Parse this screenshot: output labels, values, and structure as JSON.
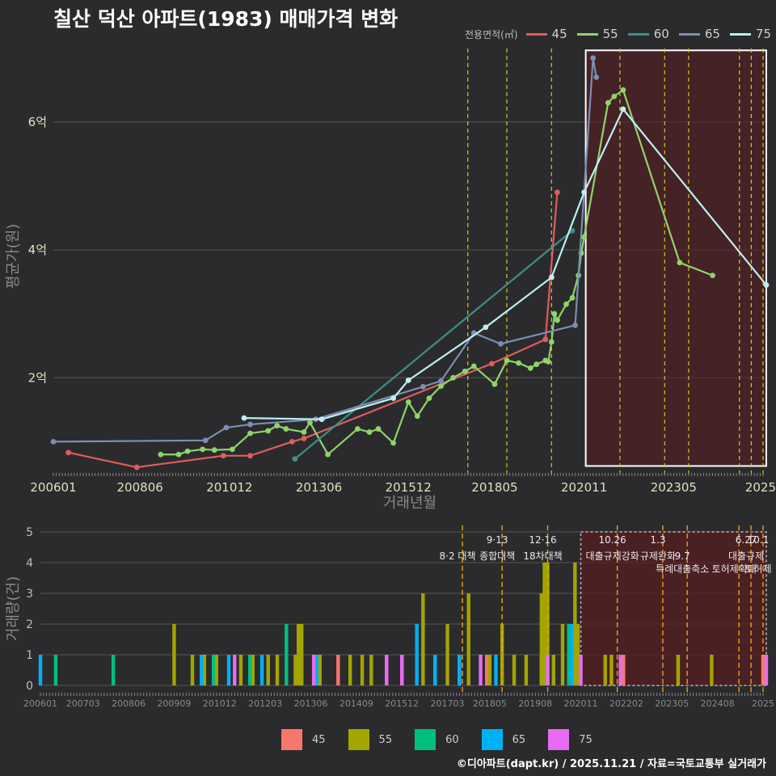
{
  "header": {
    "title": "칠산 덕산 아파트(1983) 매매가격 변화",
    "footer": "©디아파트(dapt.kr) / 2025.11.21 / 자료=국토교통부 실거래가"
  },
  "chart_data": [
    {
      "type": "line",
      "xlabel": "거래년월",
      "ylabel": "평균가(원)",
      "xlim": [
        2006.0,
        2025.92
      ],
      "ylim": [
        0.55,
        7.25
      ],
      "x_ticks": [
        "200601",
        "200806",
        "201012",
        "201306",
        "201512",
        "201805",
        "202011",
        "202305",
        "2025"
      ],
      "x_tick_values": [
        2006.0,
        2008.42,
        2010.92,
        2013.42,
        2015.92,
        2018.33,
        2020.83,
        2023.33,
        2025.92
      ],
      "y_ticks": [
        "2억",
        "4억",
        "6억"
      ],
      "y_tick_values": [
        2,
        4,
        6
      ],
      "legend_title": "전용면적(㎡)",
      "legend_position": "top-right",
      "highlight_region": [
        2020.83,
        2025.92
      ],
      "policy_lines": [
        2017.58,
        2018.67,
        2019.92,
        2021.83,
        2023.08,
        2023.75,
        2025.17,
        2025.5,
        2025.83
      ],
      "series": [
        {
          "name": "45",
          "color": "#e05c5c",
          "x": [
            2006.42,
            2008.33,
            2010.75,
            2011.5,
            2012.67,
            2013.0,
            2018.25,
            2019.75,
            2020.08
          ],
          "y": [
            0.83,
            0.6,
            0.78,
            0.78,
            1.0,
            1.05,
            2.22,
            2.6,
            4.9
          ]
        },
        {
          "name": "55",
          "color": "#8fd46a",
          "x": [
            2009.0,
            2009.5,
            2009.75,
            2010.17,
            2010.5,
            2011.0,
            2011.5,
            2012.0,
            2012.25,
            2012.5,
            2013.0,
            2013.17,
            2013.67,
            2014.5,
            2014.83,
            2015.08,
            2015.5,
            2015.92,
            2016.17,
            2016.5,
            2016.83,
            2017.17,
            2017.5,
            2017.75,
            2018.33,
            2018.67,
            2019.0,
            2019.33,
            2019.5,
            2019.75,
            2019.83,
            2019.92,
            2020.0,
            2020.08,
            2020.33,
            2020.5,
            2020.67,
            2020.75,
            2020.83,
            2021.5,
            2021.67,
            2021.92,
            2023.5,
            2024.42
          ],
          "y": [
            0.8,
            0.8,
            0.85,
            0.88,
            0.87,
            0.88,
            1.13,
            1.17,
            1.25,
            1.2,
            1.15,
            1.3,
            0.8,
            1.2,
            1.15,
            1.2,
            0.98,
            1.62,
            1.4,
            1.68,
            1.87,
            2.0,
            2.1,
            2.18,
            1.9,
            2.27,
            2.23,
            2.15,
            2.21,
            2.27,
            2.25,
            2.56,
            3.0,
            2.9,
            3.15,
            3.25,
            3.6,
            3.95,
            4.2,
            6.3,
            6.4,
            6.5,
            3.8,
            3.6
          ]
        },
        {
          "name": "60",
          "color": "#3d8f8a",
          "x": [
            2012.75,
            2020.5
          ],
          "y": [
            0.73,
            4.3
          ]
        },
        {
          "name": "65",
          "color": "#7b8fb3",
          "x": [
            2006.0,
            2010.25,
            2010.83,
            2011.5,
            2013.33,
            2016.33,
            2016.83,
            2017.75,
            2018.5,
            2020.58,
            2021.08,
            2021.17
          ],
          "y": [
            1.0,
            1.02,
            1.22,
            1.27,
            1.35,
            1.86,
            1.95,
            2.7,
            2.53,
            2.82,
            7.0,
            6.7
          ]
        },
        {
          "name": "75",
          "color": "#bdf0f0",
          "x": [
            2011.33,
            2013.5,
            2015.5,
            2015.92,
            2018.08,
            2019.92,
            2020.83,
            2021.92,
            2025.92
          ],
          "y": [
            1.37,
            1.35,
            1.68,
            1.96,
            2.79,
            3.57,
            4.9,
            6.2,
            3.45
          ]
        }
      ]
    },
    {
      "type": "bar",
      "xlabel": "",
      "ylabel": "거래량(건)",
      "xlim": [
        2006.0,
        2025.92
      ],
      "ylim": [
        0,
        5
      ],
      "x_ticks": [
        "200601",
        "200703",
        "200806",
        "200909",
        "201012",
        "201203",
        "201306",
        "201409",
        "201512",
        "201703",
        "201805",
        "201908",
        "202011",
        "202202",
        "202305",
        "202408",
        "2025"
      ],
      "x_tick_values": [
        2006.0,
        2007.17,
        2008.42,
        2009.67,
        2010.92,
        2012.17,
        2013.42,
        2014.67,
        2015.92,
        2017.17,
        2018.33,
        2019.58,
        2020.83,
        2022.08,
        2023.33,
        2024.58,
        2025.92
      ],
      "y_ticks": [
        "0",
        "1",
        "2",
        "3",
        "4",
        "5"
      ],
      "highlight_region": [
        2020.83,
        2025.92
      ],
      "policy_lines": [
        2017.58,
        2018.67,
        2019.92,
        2021.83,
        2023.08,
        2023.75,
        2025.17,
        2025.5,
        2025.83
      ],
      "annotations": [
        {
          "x": 2017.58,
          "row": 1,
          "text": "8·2 대책"
        },
        {
          "x": 2018.67,
          "row": 0,
          "text": "9·13"
        },
        {
          "x": 2018.67,
          "row": 1,
          "text": "종합대책"
        },
        {
          "x": 2019.92,
          "row": 0,
          "text": "12·16"
        },
        {
          "x": 2019.92,
          "row": 1,
          "text": "18차대책"
        },
        {
          "x": 2021.83,
          "row": 0,
          "text": "10.26"
        },
        {
          "x": 2021.83,
          "row": 1,
          "text": "대출규제강화"
        },
        {
          "x": 2023.08,
          "row": 0,
          "text": "1.3"
        },
        {
          "x": 2023.08,
          "row": 1,
          "text": "규제완화"
        },
        {
          "x": 2023.75,
          "row": 1,
          "text": "9.7"
        },
        {
          "x": 2023.75,
          "row": 2,
          "text": "특례대출축소"
        },
        {
          "x": 2025.17,
          "row": 2,
          "text": "토허제확대"
        },
        {
          "x": 2025.5,
          "row": 0,
          "text": "6.27"
        },
        {
          "x": 2025.5,
          "row": 1,
          "text": "대출규제"
        },
        {
          "x": 2025.83,
          "row": 0,
          "text": "10.1"
        },
        {
          "x": 2025.83,
          "row": 2,
          "text": "토허제"
        }
      ],
      "series": [
        {
          "name": "45",
          "color": "#f8766d",
          "x": [
            2013.0,
            2014.17,
            2018.25,
            2019.75,
            2020.08,
            2022.0,
            2025.83
          ],
          "values": [
            1,
            1,
            1,
            1,
            1,
            1,
            1
          ]
        },
        {
          "name": "55",
          "color": "#a3a500",
          "x": [
            2009.67,
            2010.17,
            2010.5,
            2010.83,
            2011.5,
            2011.83,
            2012.25,
            2012.5,
            2013.0,
            2013.08,
            2013.17,
            2013.67,
            2014.5,
            2014.83,
            2015.08,
            2015.5,
            2015.92,
            2016.5,
            2016.83,
            2017.17,
            2017.5,
            2017.75,
            2018.33,
            2018.67,
            2019.0,
            2019.33,
            2019.75,
            2019.83,
            2019.92,
            2020.08,
            2020.33,
            2020.5,
            2020.67,
            2020.75,
            2021.5,
            2021.67,
            2021.92,
            2023.5,
            2024.42
          ],
          "values": [
            2,
            1,
            1,
            1,
            1,
            1,
            1,
            1,
            1,
            2,
            2,
            1,
            1,
            1,
            1,
            1,
            1,
            3,
            1,
            2,
            1,
            3,
            1,
            2,
            1,
            1,
            3,
            4,
            4,
            1,
            2,
            1,
            4,
            2,
            1,
            1,
            1,
            1,
            1
          ]
        },
        {
          "name": "60",
          "color": "#00bf7d",
          "x": [
            2006.42,
            2008.0,
            2010.75,
            2011.75,
            2012.75,
            2020.5
          ],
          "values": [
            1,
            1,
            1,
            1,
            2,
            2
          ]
        },
        {
          "name": "65",
          "color": "#00b0f6",
          "x": [
            2006.0,
            2010.42,
            2011.17,
            2012.08,
            2013.58,
            2016.33,
            2016.83,
            2017.5,
            2018.5,
            2019.92,
            2020.58
          ],
          "values": [
            1,
            1,
            1,
            1,
            1,
            2,
            1,
            1,
            1,
            1,
            2
          ]
        },
        {
          "name": "75",
          "color": "#e76bf3",
          "x": [
            2011.33,
            2013.5,
            2015.5,
            2015.92,
            2018.08,
            2019.92,
            2020.83,
            2021.92,
            2025.92
          ],
          "values": [
            1,
            1,
            1,
            1,
            1,
            1,
            1,
            1,
            1
          ]
        }
      ]
    }
  ]
}
